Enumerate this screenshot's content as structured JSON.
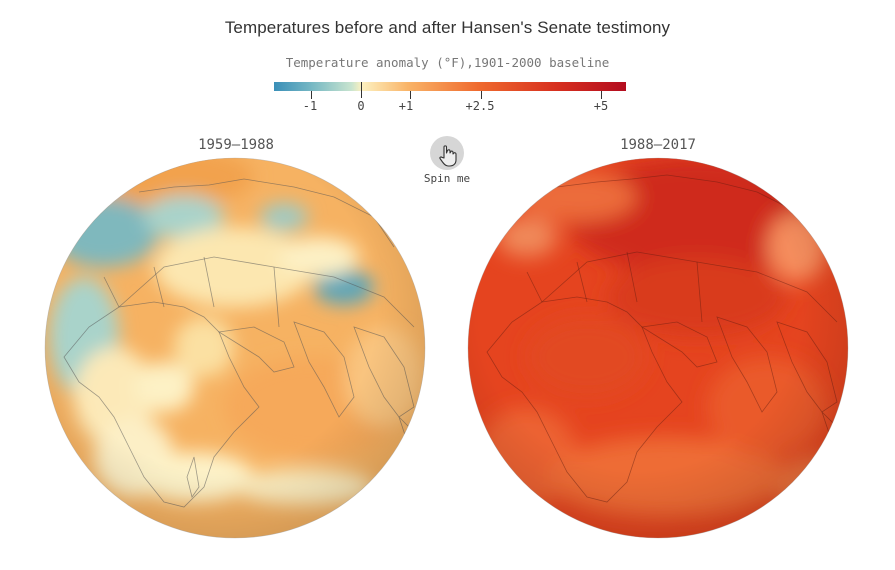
{
  "header": {
    "title": "Temperatures before and after Hansen's Senate testimony",
    "subtitle": "Temperature anomaly (°F),1901-2000 baseline"
  },
  "legend": {
    "ticks": [
      {
        "label": "-1",
        "value": -1
      },
      {
        "label": "0",
        "value": 0
      },
      {
        "label": "+1",
        "value": 1
      },
      {
        "label": "+2.5",
        "value": 2.5
      },
      {
        "label": "+5",
        "value": 5
      }
    ],
    "colors": [
      "#3a8fb8",
      "#9fd0cf",
      "#fdf1c0",
      "#f8b56a",
      "#ef6a2e",
      "#d7301f",
      "#b30c1f"
    ]
  },
  "globes": [
    {
      "period": "1959—1988",
      "base_color": "#f6b262"
    },
    {
      "period": "1988—2017",
      "base_color": "#e5441f"
    }
  ],
  "spin": {
    "label": "Spin me",
    "icon": "hand-pointer-icon"
  }
}
